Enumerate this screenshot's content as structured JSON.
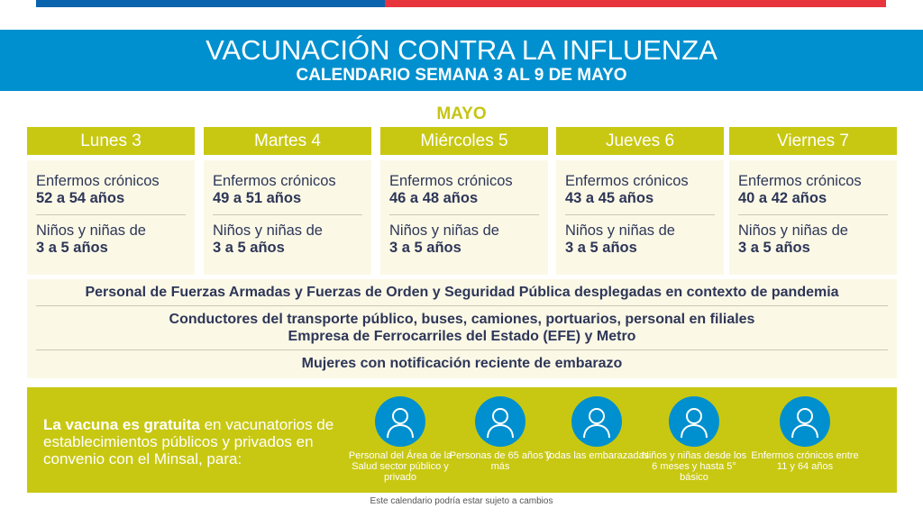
{
  "colors": {
    "blue": "#0090cf",
    "green": "#c8c812",
    "flag_blue": "#0a63ad",
    "flag_red": "#e8353d"
  },
  "header": {
    "title": "VACUNACIÓN CONTRA LA INFLUENZA",
    "subtitle": "CALENDARIO SEMANA 3 AL 9 DE MAYO"
  },
  "month": "MAYO",
  "days": [
    {
      "label": "Lunes 3",
      "g1": "Enfermos crónicos",
      "g1b": "52 a 54 años",
      "g2": "Niños y niñas de",
      "g2b": "3 a 5 años"
    },
    {
      "label": "Martes 4",
      "g1": "Enfermos crónicos",
      "g1b": "49 a 51 años",
      "g2": "Niños y niñas de",
      "g2b": "3 a 5 años"
    },
    {
      "label": "Miércoles 5",
      "g1": "Enfermos crónicos",
      "g1b": "46 a 48 años",
      "g2": "Niños y niñas de",
      "g2b": "3 a 5 años"
    },
    {
      "label": "Jueves 6",
      "g1": "Enfermos crónicos",
      "g1b": "43 a 45 años",
      "g2": "Niños y niñas de",
      "g2b": "3 a 5 años"
    },
    {
      "label": "Viernes 7",
      "g1": "Enfermos crónicos",
      "g1b": "40 a 42 años",
      "g2": "Niños y niñas de",
      "g2b": "3 a 5 años"
    }
  ],
  "all_week": [
    "Personal de Fuerzas Armadas y Fuerzas de Orden y Seguridad Pública desplegadas en contexto de pandemia",
    "Conductores del transporte público, buses, camiones, portuarios, personal en filiales",
    "Empresa de Ferrocarriles del Estado (EFE) y Metro",
    "Mujeres con notificación reciente de embarazo"
  ],
  "info": {
    "bold": "La vacuna es gratuita",
    "rest": " en vacunatorios de establecimientos públicos y privados en convenio con el Minsal, para:"
  },
  "groups": [
    {
      "icon": "health-worker-icon",
      "label": "Personal del Área de la Salud sector público y privado"
    },
    {
      "icon": "elderly-couple-icon",
      "label": "Personas de 65 años y más"
    },
    {
      "icon": "pregnant-woman-icon",
      "label": "Todas las embarazadas"
    },
    {
      "icon": "child-mask-icon",
      "label": "Niños y niñas desde los 6 meses y hasta 5° básico"
    },
    {
      "icon": "chronic-patient-icon",
      "label": "Enfermos crónicos entre 11 y 64 años"
    }
  ],
  "footer": "Este calendario podría estar sujeto a cambios"
}
